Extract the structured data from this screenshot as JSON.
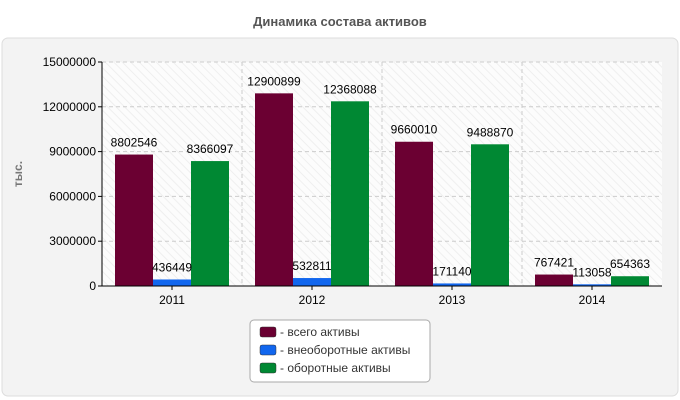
{
  "chart_data": {
    "type": "bar",
    "title": "Динамика состава активов",
    "ylabel": "тыс.",
    "xlabel": "",
    "categories": [
      "2011",
      "2012",
      "2013",
      "2014"
    ],
    "ylim": [
      0,
      15000000
    ],
    "yticks": [
      0,
      3000000,
      6000000,
      9000000,
      12000000,
      15000000
    ],
    "ytick_labels": [
      "0",
      "3000000",
      "6000000",
      "9000000",
      "12000000",
      "15000000"
    ],
    "grid": true,
    "legend_position": "bottom",
    "series": [
      {
        "name": "- всего активы",
        "color": "#6b0032",
        "values": [
          8802546,
          12900899,
          9660010,
          767421
        ]
      },
      {
        "name": "- внеоборотные активы",
        "color": "#1166ee",
        "values": [
          436449,
          532811,
          171140,
          113058
        ]
      },
      {
        "name": "- оборотные активы",
        "color": "#008833",
        "values": [
          8366097,
          12368088,
          9488870,
          654363
        ]
      }
    ]
  }
}
